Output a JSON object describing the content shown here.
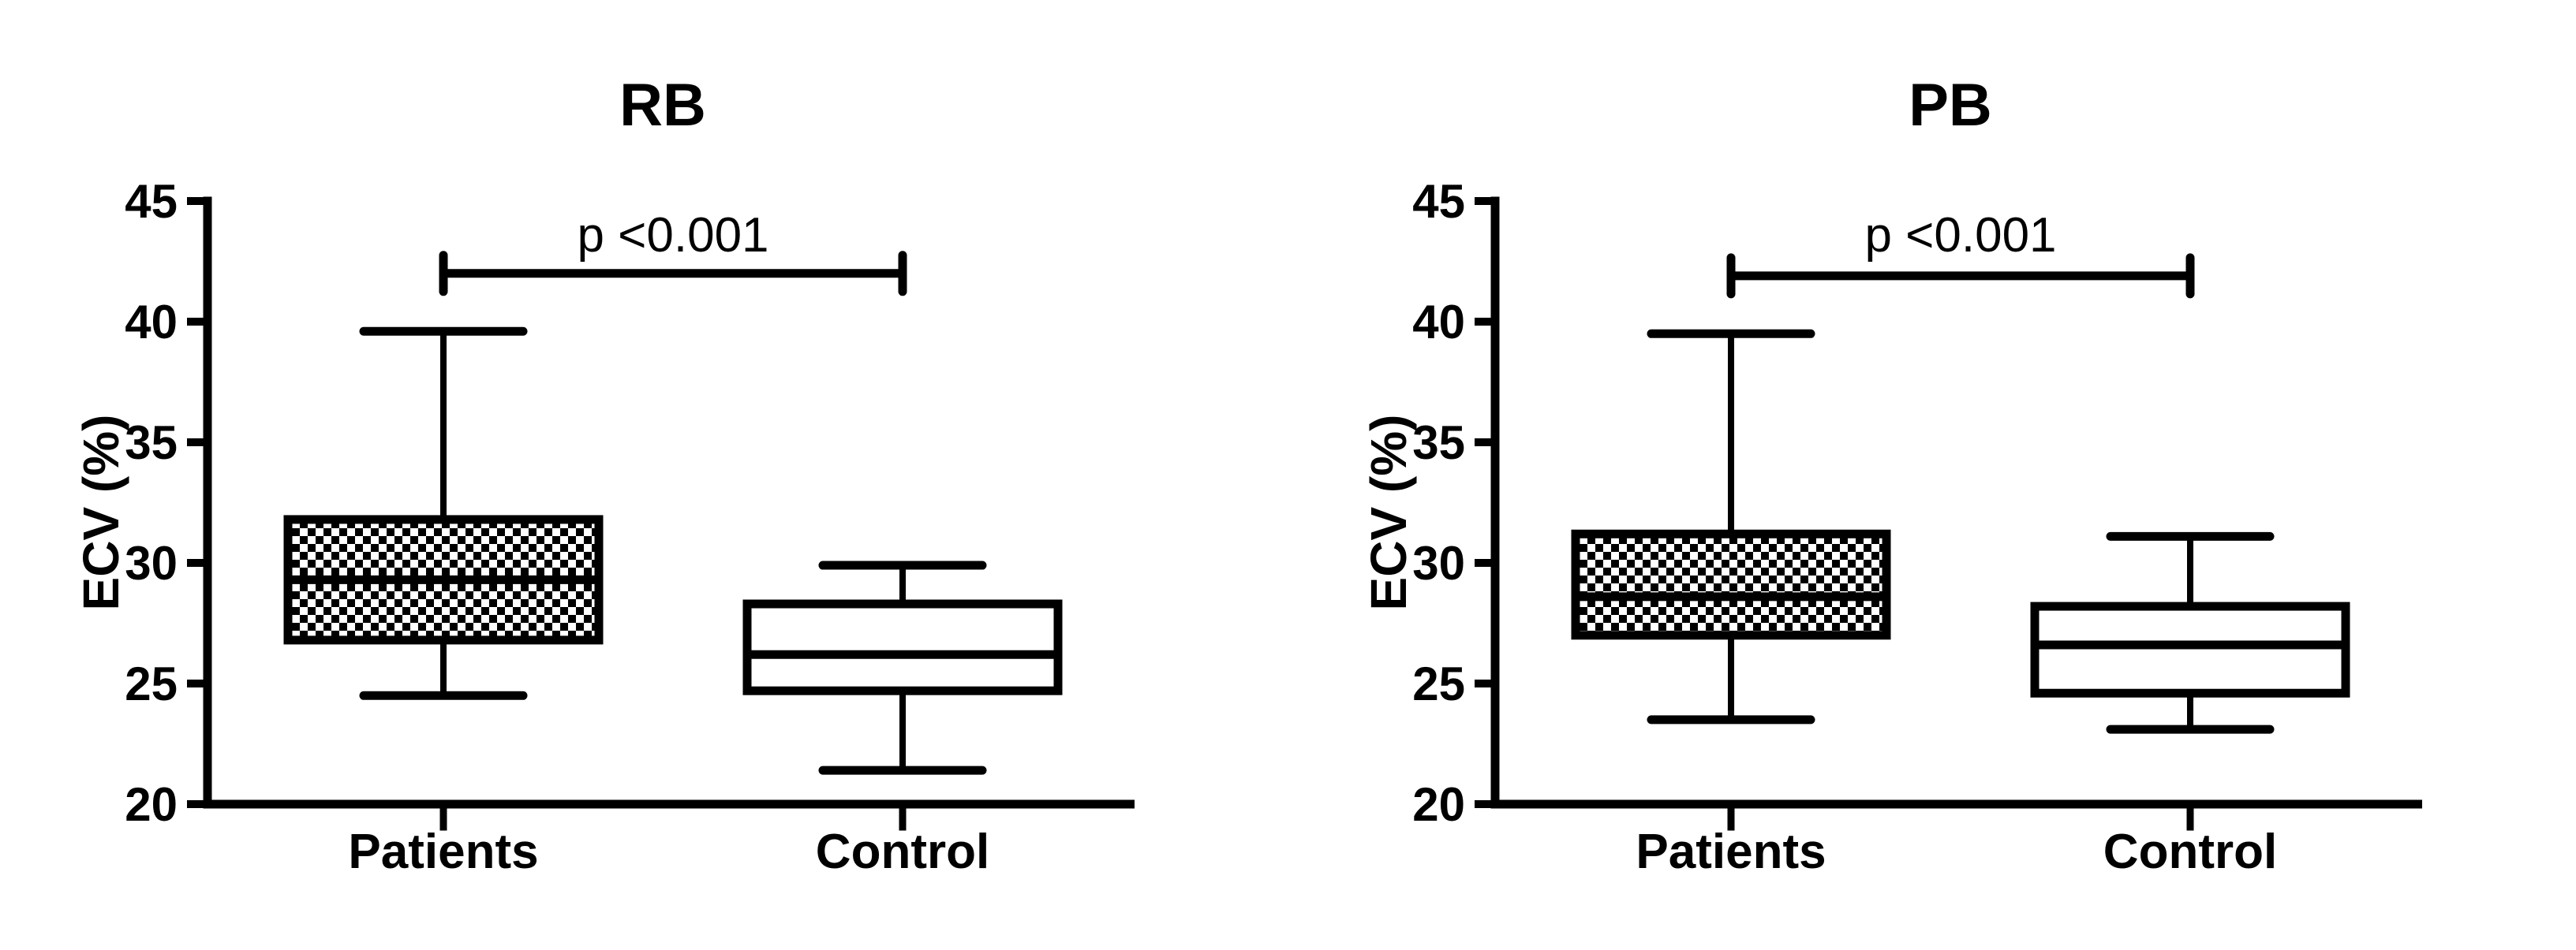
{
  "figure": {
    "background_color": "#ffffff",
    "ink_color": "#000000",
    "description": "Two box-and-whisker panels comparing ECV (%) between Patients and Control groups"
  },
  "chart_data": [
    {
      "type": "boxplot",
      "title": "RB",
      "ylabel": "ECV (%)",
      "ylim": [
        20,
        45
      ],
      "yticks": [
        45,
        40,
        35,
        30,
        25,
        20
      ],
      "categories": [
        "Patients",
        "Control"
      ],
      "grid": false,
      "p_label": "p <0.001",
      "p_bracket_y": 42.0,
      "series": [
        {
          "name": "Patients",
          "fill": "checkerboard",
          "min": 24.5,
          "q1": 26.8,
          "median": 29.3,
          "q3": 31.8,
          "max": 39.6
        },
        {
          "name": "Control",
          "fill": "white",
          "min": 21.4,
          "q1": 24.7,
          "median": 26.2,
          "q3": 28.3,
          "max": 29.9
        }
      ]
    },
    {
      "type": "boxplot",
      "title": "PB",
      "ylabel": "ECV (%)",
      "ylim": [
        20,
        45
      ],
      "yticks": [
        45,
        40,
        35,
        30,
        25,
        20
      ],
      "categories": [
        "Patients",
        "Control"
      ],
      "grid": false,
      "p_label": "p <0.001",
      "p_bracket_y": 41.9,
      "series": [
        {
          "name": "Patients",
          "fill": "checkerboard",
          "min": 23.5,
          "q1": 27.0,
          "median": 28.6,
          "q3": 31.2,
          "max": 39.5
        },
        {
          "name": "Control",
          "fill": "white",
          "min": 23.1,
          "q1": 24.6,
          "median": 26.6,
          "q3": 28.2,
          "max": 31.1
        }
      ]
    }
  ]
}
